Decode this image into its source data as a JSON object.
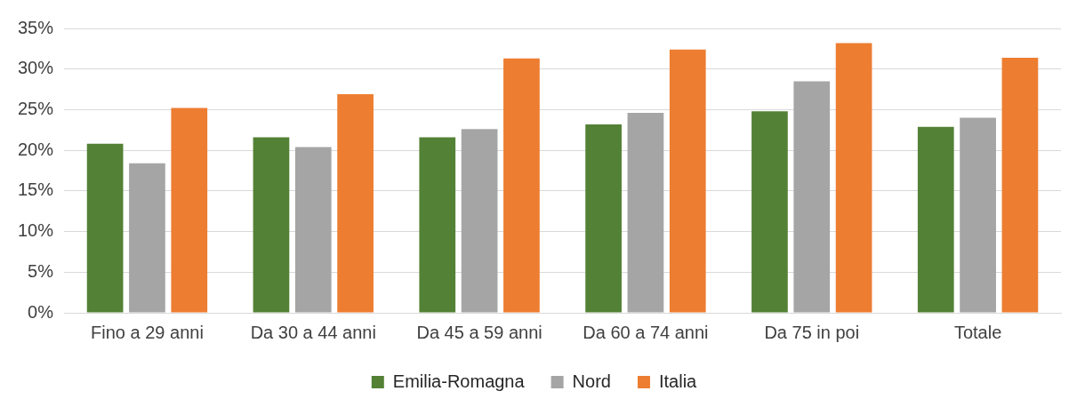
{
  "chart_data": {
    "type": "bar",
    "categories": [
      "Fino a 29 anni",
      "Da 30 a 44 anni",
      "Da 45 a 59 anni",
      "Da 60 a 74 anni",
      "Da 75 in poi",
      "Totale"
    ],
    "series": [
      {
        "name": "Emilia-Romagna",
        "color": "#538135",
        "values": [
          20.8,
          21.6,
          21.6,
          23.2,
          24.8,
          22.9
        ]
      },
      {
        "name": "Nord",
        "color": "#a5a5a5",
        "values": [
          18.4,
          20.4,
          22.6,
          24.6,
          28.5,
          24.0
        ]
      },
      {
        "name": "Italia",
        "color": "#ed7d31",
        "values": [
          25.2,
          26.9,
          31.3,
          32.4,
          33.2,
          31.4
        ]
      }
    ],
    "ylim": [
      0,
      35
    ],
    "yticks": [
      {
        "value": 0,
        "label": "0%"
      },
      {
        "value": 5,
        "label": "5%"
      },
      {
        "value": 10,
        "label": "10%"
      },
      {
        "value": 15,
        "label": "15%"
      },
      {
        "value": 20,
        "label": "20%"
      },
      {
        "value": 25,
        "label": "25%"
      },
      {
        "value": 30,
        "label": "30%"
      },
      {
        "value": 35,
        "label": "35%"
      }
    ],
    "grid": "y",
    "legend": "bottom"
  }
}
